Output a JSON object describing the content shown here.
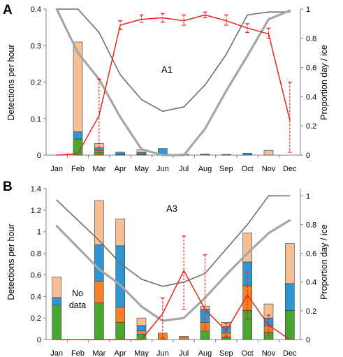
{
  "colors": {
    "green": "#4aa62f",
    "orange": "#f58025",
    "blue": "#2f95d3",
    "peach": "#f7bf96",
    "red": "#e8261c",
    "dark_gray": "#6e6e6e",
    "light_gray": "#a6a6a6",
    "axis": "#808080"
  },
  "chart_data": [
    {
      "panel": "A",
      "type": "bar",
      "stacked": true,
      "annotation": "A1",
      "categories": [
        "Jan",
        "Feb",
        "Mar",
        "Apr",
        "May",
        "Jun",
        "Jul",
        "Aug",
        "Sep",
        "Oct",
        "Nov",
        "Dec"
      ],
      "ylabel": "Detections per hour",
      "ylim": [
        0,
        0.4
      ],
      "yticks": [
        "0",
        "0.1",
        "0.2",
        "0.3",
        "0.4"
      ],
      "y2label": "Proportion day / ice",
      "y2lim": [
        0,
        1
      ],
      "y2ticks": [
        "0",
        "0.2",
        "0.4",
        "0.6",
        "0.8",
        "1"
      ],
      "series": [
        {
          "values": [
            0,
            0.044,
            0.008,
            0.002,
            0.002,
            0,
            0,
            0,
            0,
            0,
            0,
            0
          ]
        },
        {
          "values": [
            0,
            0,
            0.005,
            0,
            0,
            0,
            0,
            0,
            0,
            0,
            0,
            0
          ]
        },
        {
          "values": [
            0,
            0.02,
            0.007,
            0.006,
            0.005,
            0.018,
            0,
            0.003,
            0.002,
            0.005,
            0,
            0
          ]
        },
        {
          "values": [
            0,
            0.246,
            0.012,
            0,
            0.008,
            0,
            0.003,
            0,
            0,
            0,
            0.013,
            0
          ]
        }
      ],
      "lines": [
        {
          "role": "dark-gray",
          "values": [
            1.0,
            1.0,
            0.84,
            0.55,
            0.38,
            0.3,
            0.33,
            0.48,
            0.69,
            0.96,
            0.98,
            0.98
          ]
        },
        {
          "role": "light-gray",
          "values": [
            1.0,
            0.7,
            0.52,
            0.26,
            0.04,
            0,
            0,
            0.18,
            0.44,
            0.68,
            0.93,
            0.99
          ]
        },
        {
          "role": "red",
          "values": [
            0,
            0.01,
            0.27,
            0.89,
            0.93,
            0.94,
            0.92,
            0.96,
            0.92,
            0.87,
            0.83,
            0.24
          ],
          "err_low": [
            null,
            null,
            0.0,
            0.86,
            0.91,
            0.91,
            0.89,
            0.94,
            0.89,
            0.84,
            0.8,
            0.02
          ],
          "err_high": [
            null,
            null,
            0.52,
            0.92,
            0.96,
            0.97,
            0.96,
            0.98,
            0.96,
            0.9,
            0.87,
            0.5
          ]
        }
      ]
    },
    {
      "panel": "B",
      "type": "bar",
      "stacked": true,
      "annotation": "A3",
      "note": "No data",
      "categories": [
        "Jan",
        "Feb",
        "Mar",
        "Apr",
        "May",
        "Jun",
        "Jul",
        "Aug",
        "Sep",
        "Oct",
        "Nov",
        "Dec"
      ],
      "ylabel": "Detections per hour",
      "ylim": [
        0,
        1.4
      ],
      "yticks": [
        "0",
        "0.2",
        "0.4",
        "0.6",
        "0.8",
        "1",
        "1.2",
        "1.4"
      ],
      "y2label": "Proportion day / ice",
      "y2lim": [
        0,
        1.05
      ],
      "y2ticks": [
        "0",
        "0.2",
        "0.4",
        "0.6",
        "0.8",
        "1"
      ],
      "series": [
        {
          "values": [
            0.32,
            0,
            0.34,
            0.16,
            0.05,
            0,
            0,
            0.08,
            0.02,
            0.27,
            0.07,
            0.27
          ]
        },
        {
          "values": [
            0,
            0,
            0.2,
            0.14,
            0.03,
            0.06,
            0.02,
            0.08,
            0.04,
            0.23,
            0.06,
            0
          ]
        },
        {
          "values": [
            0.07,
            0,
            0.34,
            0.57,
            0.05,
            0,
            0,
            0.12,
            0.06,
            0.22,
            0.07,
            0.25
          ]
        },
        {
          "values": [
            0.19,
            0,
            0.41,
            0.25,
            0.07,
            0,
            0.01,
            0.03,
            0.04,
            0.27,
            0.13,
            0.37
          ]
        }
      ],
      "lines": [
        {
          "role": "dark-gray",
          "values": [
            0.97,
            0.83,
            0.69,
            0.53,
            0.42,
            0.37,
            0.4,
            0.46,
            0.63,
            0.8,
            1.0,
            1.0
          ]
        },
        {
          "role": "light-gray",
          "values": [
            0.79,
            0.64,
            0.49,
            0.38,
            0.23,
            0.13,
            0.15,
            0.29,
            0.45,
            0.6,
            0.74,
            0.83
          ]
        },
        {
          "role": "red",
          "values": [
            0,
            0,
            0,
            0,
            0,
            0.18,
            0.48,
            0.21,
            0.06,
            0.31,
            0.1,
            0
          ],
          "err_low": [
            null,
            null,
            null,
            null,
            null,
            0.01,
            0.21,
            0.08,
            0.02,
            0.14,
            0.03,
            null
          ],
          "err_high": [
            null,
            null,
            null,
            null,
            null,
            0.29,
            0.72,
            0.59,
            0.11,
            0.47,
            0.17,
            null
          ]
        }
      ]
    }
  ],
  "no_data_lines": [
    "No",
    "data"
  ]
}
